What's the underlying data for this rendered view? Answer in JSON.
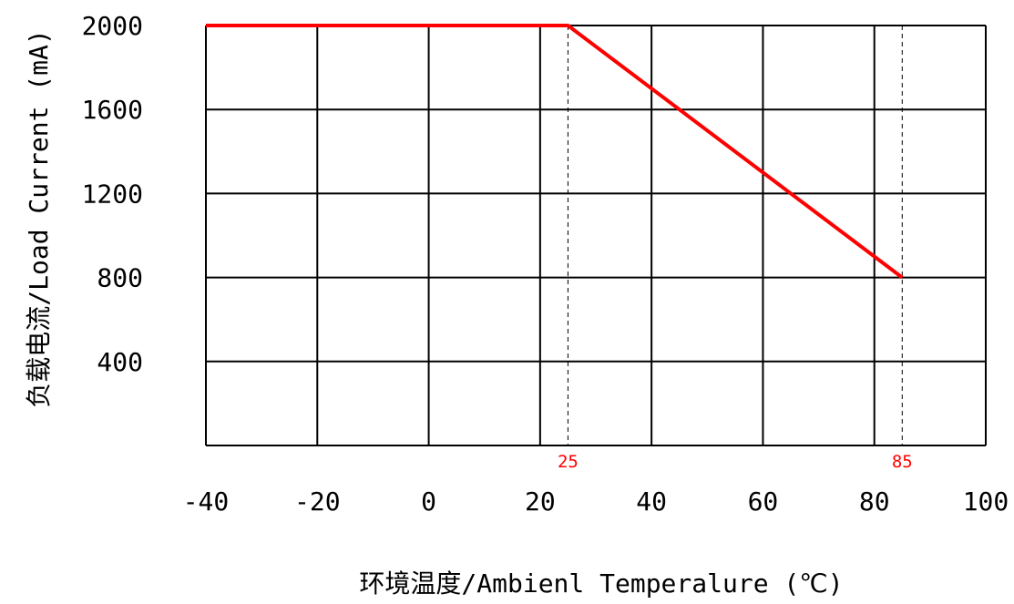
{
  "chart_data": {
    "type": "line",
    "title": "",
    "xlabel": "环境温度/Ambienl Temperalure (℃)",
    "ylabel": "负载电流/Load Current (mA)",
    "xlim": [
      -40,
      100
    ],
    "ylim": [
      0,
      2000
    ],
    "x_ticks": [
      -40,
      -20,
      0,
      20,
      40,
      60,
      80,
      100
    ],
    "x_tick_labels": [
      "-40",
      "-20",
      "0",
      "20",
      "40",
      "60",
      "80",
      "100"
    ],
    "y_ticks": [
      400,
      800,
      1200,
      1600,
      2000
    ],
    "y_tick_labels": [
      "400",
      "800",
      "1200",
      "1600",
      "2000"
    ],
    "grid": true,
    "series": [
      {
        "x": [
          -40,
          25,
          85
        ],
        "y": [
          2000,
          2000,
          800
        ],
        "color": "#ff0000"
      }
    ],
    "reference_lines": [
      {
        "x": 25,
        "label": "25",
        "style": "dashed"
      },
      {
        "x": 85,
        "label": "85",
        "style": "dashed"
      }
    ]
  },
  "colors": {
    "series": "#ff0000",
    "grid": "#000000",
    "marker_label": "#ff0000"
  }
}
